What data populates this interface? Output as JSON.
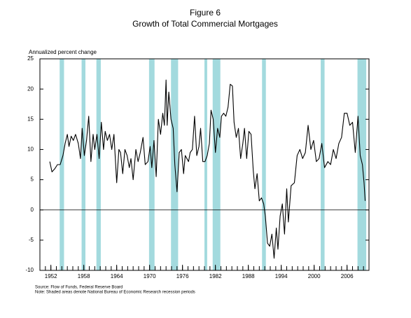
{
  "chart_data": {
    "type": "line",
    "title": "Figure 6",
    "subtitle": "Growth of Total Commercial Mortgages",
    "y_label": "Annualized percent change",
    "source": "Source: Flow of Funds, Federal Reserve Board",
    "note": "Note: Shaded areas denote National Bureau of Economic Research recession periods",
    "color": "#000000",
    "recession_color": "#a3dade",
    "xlim": [
      1950,
      2010
    ],
    "ylim": [
      -10,
      25
    ],
    "xticks": [
      1952,
      1958,
      1964,
      1970,
      1976,
      1982,
      1988,
      1994,
      2000,
      2006
    ],
    "xminorticks": [
      1951,
      1952,
      1953,
      1954,
      1955,
      1956,
      1957,
      1958,
      1959,
      1960,
      1961,
      1962,
      1963,
      1964,
      1965,
      1966,
      1967,
      1968,
      1969,
      1970,
      1971,
      1972,
      1973,
      1974,
      1975,
      1976,
      1977,
      1978,
      1979,
      1980,
      1981,
      1982,
      1983,
      1984,
      1985,
      1986,
      1987,
      1988,
      1989,
      1990,
      1991,
      1992,
      1993,
      1994,
      1995,
      1996,
      1997,
      1998,
      1999,
      2000,
      2001,
      2002,
      2003,
      2004,
      2005,
      2006,
      2007,
      2008,
      2009
    ],
    "yticks": [
      -10,
      -5,
      0,
      5,
      10,
      15,
      20,
      25
    ],
    "recessions": [
      [
        1953.6,
        1954.4
      ],
      [
        1957.6,
        1958.3
      ],
      [
        1960.3,
        1961.1
      ],
      [
        1969.9,
        1970.9
      ],
      [
        1973.9,
        1975.2
      ],
      [
        1980.0,
        1980.5
      ],
      [
        1981.5,
        1982.9
      ],
      [
        1990.5,
        1991.2
      ],
      [
        2001.2,
        2001.9
      ],
      [
        2007.9,
        2009.5
      ]
    ],
    "x": [
      1951.8,
      1952.2,
      1952.7,
      1953.2,
      1953.7,
      1954.2,
      1954.6,
      1955.0,
      1955.3,
      1955.7,
      1956.1,
      1956.5,
      1957.0,
      1957.4,
      1957.7,
      1958.1,
      1958.5,
      1958.9,
      1959.3,
      1959.7,
      1960.0,
      1960.4,
      1960.8,
      1961.2,
      1961.6,
      1961.9,
      1962.3,
      1962.7,
      1963.1,
      1963.5,
      1964.0,
      1964.4,
      1964.7,
      1965.1,
      1965.5,
      1965.9,
      1966.3,
      1966.6,
      1967.0,
      1967.5,
      1967.9,
      1968.3,
      1968.8,
      1969.2,
      1969.7,
      1970.1,
      1970.4,
      1970.8,
      1971.2,
      1971.6,
      1972.0,
      1972.4,
      1972.7,
      1973.0,
      1973.2,
      1973.5,
      1973.9,
      1974.3,
      1974.6,
      1975.0,
      1975.4,
      1975.8,
      1976.2,
      1976.5,
      1977.1,
      1977.4,
      1977.8,
      1978.2,
      1978.6,
      1979.0,
      1979.3,
      1979.7,
      1980.1,
      1980.5,
      1980.9,
      1981.2,
      1981.6,
      1982.0,
      1982.4,
      1982.8,
      1983.1,
      1983.5,
      1983.9,
      1984.3,
      1984.7,
      1985.1,
      1985.4,
      1985.8,
      1986.2,
      1986.6,
      1987.0,
      1987.3,
      1987.7,
      1988.1,
      1988.5,
      1988.9,
      1989.2,
      1989.6,
      1990.0,
      1990.4,
      1990.8,
      1991.1,
      1991.5,
      1991.9,
      1992.3,
      1992.7,
      1993.1,
      1993.4,
      1993.8,
      1994.2,
      1994.6,
      1995.0,
      1995.3,
      1995.8,
      1996.4,
      1996.9,
      1997.4,
      1997.9,
      1998.4,
      1998.9,
      1999.4,
      1999.9,
      2000.4,
      2000.9,
      2001.4,
      2001.9,
      2002.5,
      2003.0,
      2003.5,
      2004.0,
      2004.5,
      2005.0,
      2005.5,
      2006.0,
      2006.5,
      2007.0,
      2007.5,
      2008.0,
      2008.4,
      2008.8,
      2009.1,
      2009.3
    ],
    "values": [
      8,
      6.3,
      6.8,
      7.5,
      7.5,
      9,
      11,
      12.5,
      10.5,
      12.2,
      11.5,
      12.5,
      11,
      8.5,
      13.5,
      9,
      11.5,
      15.5,
      8,
      12.5,
      10,
      12.5,
      8.5,
      14.5,
      10,
      13,
      11.5,
      12.5,
      10,
      12.5,
      4.5,
      10,
      9.5,
      6,
      10,
      9,
      7,
      8.5,
      5,
      10,
      8,
      9.5,
      12,
      7.5,
      8,
      10.5,
      7,
      11.5,
      5.5,
      15,
      12.5,
      16,
      14,
      21.5,
      14,
      19.5,
      15,
      13.5,
      7.5,
      3,
      9.5,
      10,
      6,
      9,
      8,
      9.5,
      10,
      15.5,
      9,
      10.5,
      13.5,
      8,
      8,
      9,
      11,
      16.5,
      15,
      9.5,
      13.5,
      12,
      15.5,
      16,
      15.5,
      17,
      20.8,
      20.5,
      14.5,
      12,
      13.5,
      8.5,
      11,
      13.5,
      8.5,
      13,
      12.5,
      6.5,
      3.5,
      6,
      1.5,
      2,
      1,
      -1,
      -5.5,
      -6,
      -4,
      -8,
      -3,
      -6.5,
      -1,
      1,
      -4,
      3.5,
      -2,
      4,
      4.5,
      9,
      10,
      8.5,
      9.5,
      14,
      10,
      11.5,
      8,
      8.5,
      11,
      7,
      8,
      7.5,
      10,
      8.5,
      11,
      12,
      16,
      16,
      14,
      14.5,
      9.5,
      15.5,
      9,
      7.5,
      4.5,
      1.5
    ]
  }
}
